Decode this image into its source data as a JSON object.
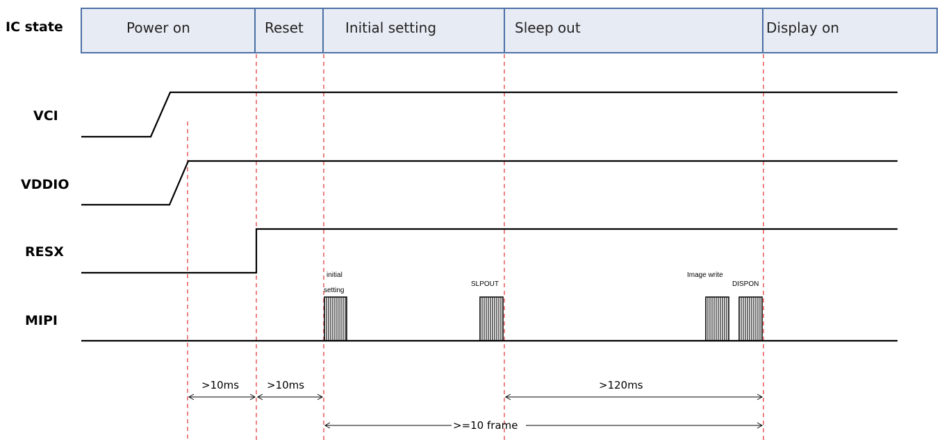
{
  "ic_state": {
    "label": "IC state",
    "states": [
      "Power on",
      "Reset",
      "Initial setting",
      "Sleep out",
      "Display on"
    ]
  },
  "signals": {
    "vci": "VCI",
    "vddio": "VDDIO",
    "resx": "RESX",
    "mipi": "MIPI"
  },
  "mipi_labels": {
    "initial_line1": "initial",
    "initial_line2": "setting",
    "slpout": "SLPOUT",
    "image_write": "Image write",
    "dispon": "DISPON"
  },
  "timing": {
    "t1": ">10ms",
    "t2": ">10ms",
    "t3": ">120ms",
    "t4": ">=10 frame"
  },
  "colors": {
    "header_fill": "#e7ebf3",
    "header_border": "#4a6fa5",
    "guide_line": "#e03030",
    "signal": "#000000"
  }
}
